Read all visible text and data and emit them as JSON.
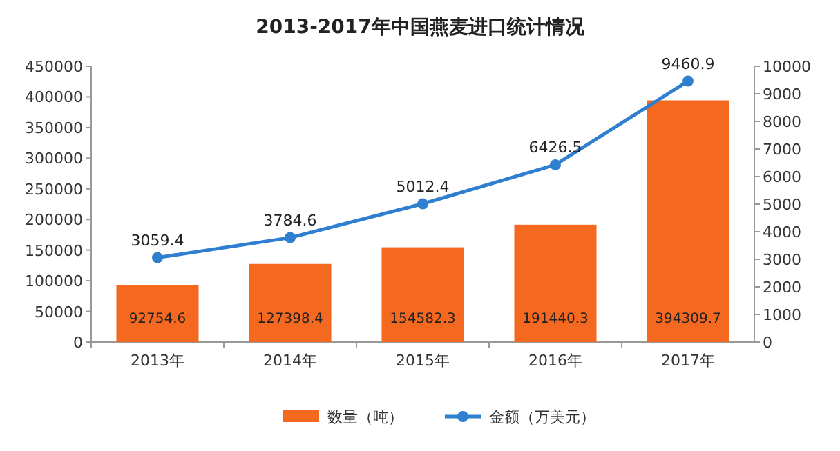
{
  "chart_data": {
    "type": "bar",
    "title": "2013-2017年中国燕麦进口统计情况",
    "categories": [
      "2013年",
      "2014年",
      "2015年",
      "2016年",
      "2017年"
    ],
    "series": [
      {
        "name": "数量（吨）",
        "color": "#f4681f",
        "values": [
          92754.6,
          127398.4,
          154582.3,
          191440.3,
          394309.7
        ]
      },
      {
        "name": "金额（万美元）",
        "type": "line",
        "axis": "y2",
        "color": "#2f7fd0",
        "values": [
          3059.4,
          3784.6,
          5012.4,
          6426.5,
          9460.9
        ]
      }
    ],
    "ylim": [
      0,
      450000
    ],
    "yticks": [
      0,
      50000,
      100000,
      150000,
      200000,
      250000,
      300000,
      350000,
      400000,
      450000
    ],
    "y2lim": [
      0,
      10000
    ],
    "y2ticks": [
      0,
      1000,
      2000,
      3000,
      4000,
      5000,
      6000,
      7000,
      8000,
      9000,
      10000
    ],
    "data_labels": true,
    "legend": "bottom",
    "marker": "circle"
  }
}
